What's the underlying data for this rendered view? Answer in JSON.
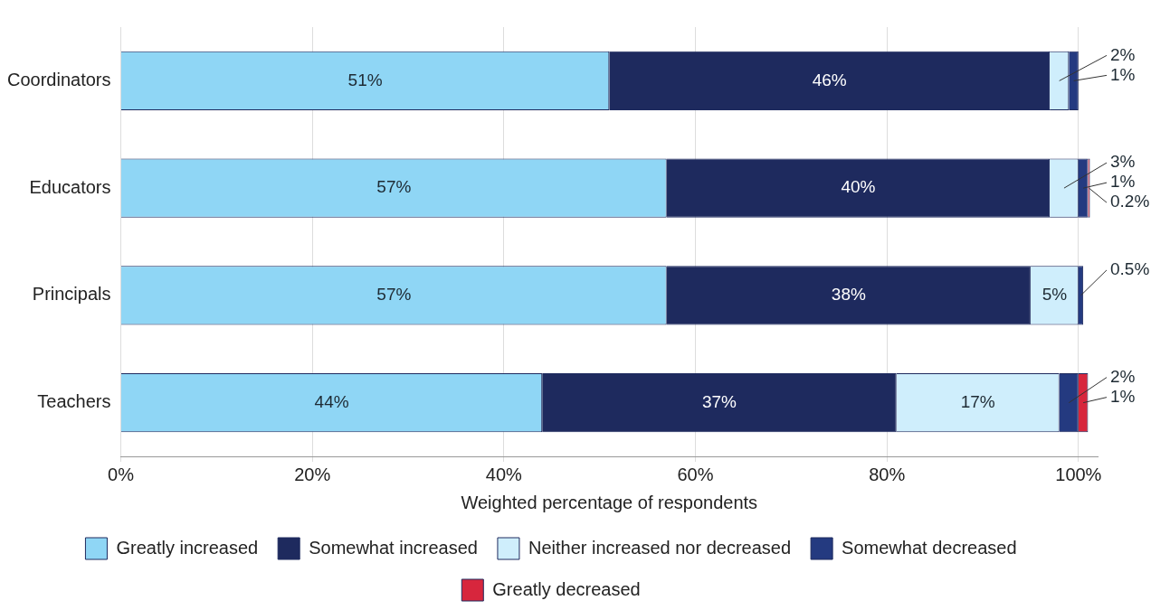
{
  "chart_data": {
    "type": "bar",
    "orientation": "horizontal",
    "stacked": true,
    "xlabel": "Weighted percentage of respondents",
    "categories": [
      "Coordinators",
      "Educators",
      "Principals",
      "Teachers"
    ],
    "series": [
      {
        "name": "Greatly increased",
        "color": "#8fd6f5",
        "values": [
          51,
          57,
          57,
          44
        ],
        "value_labels": [
          "51%",
          "57%",
          "57%",
          "44%"
        ]
      },
      {
        "name": "Somewhat increased",
        "color": "#1e2a5e",
        "values": [
          46,
          40,
          38,
          37
        ],
        "value_labels": [
          "46%",
          "40%",
          "38%",
          "37%"
        ]
      },
      {
        "name": "Neither increased nor decreased",
        "color": "#cfeefc",
        "values": [
          2,
          3,
          5,
          17
        ],
        "value_labels": [
          "2%",
          "3%",
          "5%",
          "17%"
        ]
      },
      {
        "name": "Somewhat decreased",
        "color": "#243a80",
        "values": [
          1,
          1,
          0.5,
          2
        ],
        "value_labels": [
          "1%",
          "1%",
          "0.5%",
          "2%"
        ]
      },
      {
        "name": "Greatly decreased",
        "color": "#d7263d",
        "values": [
          null,
          0.2,
          null,
          1
        ],
        "value_labels": [
          null,
          "0.2%",
          null,
          "1%"
        ]
      }
    ],
    "xlim": [
      0,
      102
    ],
    "xticks": [
      {
        "value": 0,
        "label": "0%"
      },
      {
        "value": 20,
        "label": "20%"
      },
      {
        "value": 40,
        "label": "40%"
      },
      {
        "value": 60,
        "label": "60%"
      },
      {
        "value": 80,
        "label": "80%"
      },
      {
        "value": 100,
        "label": "100%"
      }
    ],
    "grid": "x",
    "legend": "bottom"
  }
}
